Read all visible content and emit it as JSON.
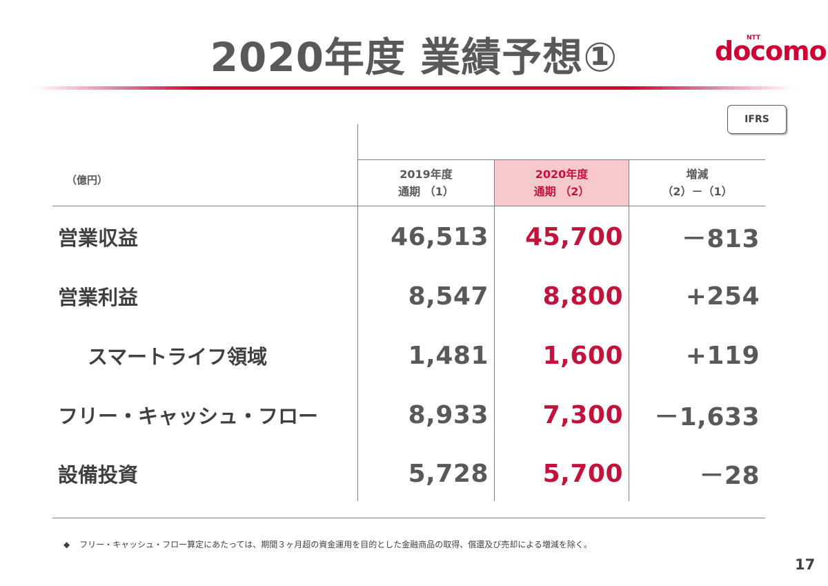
{
  "title": "2020年度 業績予想①",
  "logo": {
    "small": "NTT",
    "word": "docomo"
  },
  "badge": "IFRS",
  "unit": "（億円）",
  "columns": [
    {
      "line1": "2019年度",
      "line2": "通期 （1）"
    },
    {
      "line1": "2020年度",
      "line2": "通期 （2）"
    },
    {
      "line1": "増減",
      "line2": "（2）－（1）"
    }
  ],
  "rows": [
    {
      "label": "営業収益",
      "fy2019": "46,513",
      "fy2020": "45,700",
      "change": "－813"
    },
    {
      "label": "営業利益",
      "fy2019": "8,547",
      "fy2020": "8,800",
      "change": "+254"
    },
    {
      "label": "スマートライフ領域",
      "fy2019": "1,481",
      "fy2020": "1,600",
      "change": "+119"
    },
    {
      "label": "フリー・キャッシュ・フロー",
      "fy2019": "8,933",
      "fy2020": "7,300",
      "change": "－1,633"
    },
    {
      "label": "設備投資",
      "fy2019": "5,728",
      "fy2020": "5,700",
      "change": "－28"
    }
  ],
  "footnote": {
    "bullet": "◆",
    "text": "フリー・キャッシュ・フロー算定にあたっては、期間３ヶ月超の資金運用を目的とした金融商品の取得、償還及び売却による増減を除く。"
  },
  "page_number": "17",
  "colors": {
    "accent": "#cc0033",
    "highlight": "#f7c9cc",
    "text": "#595959"
  }
}
